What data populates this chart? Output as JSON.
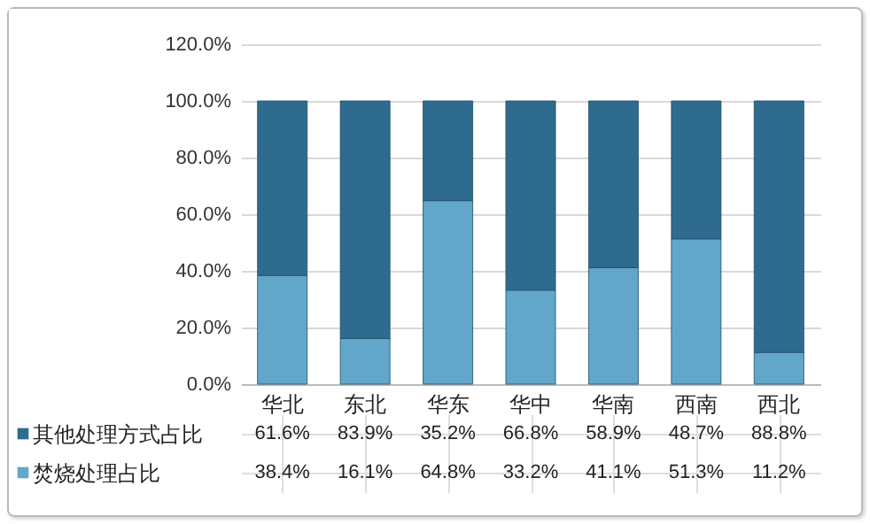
{
  "chart_data": {
    "type": "bar",
    "stacked": true,
    "categories": [
      "华北",
      "东北",
      "华东",
      "华中",
      "华南",
      "西南",
      "西北"
    ],
    "series": [
      {
        "name": "焚烧处理占比",
        "color": "#62a7c9",
        "values": [
          38.4,
          16.1,
          64.8,
          33.2,
          41.1,
          51.3,
          11.2
        ],
        "value_labels": [
          "38.4%",
          "16.1%",
          "64.8%",
          "33.2%",
          "41.1%",
          "51.3%",
          "11.2%"
        ]
      },
      {
        "name": "其他处理方式占比",
        "color": "#2f6b8e",
        "values": [
          61.6,
          83.9,
          35.2,
          66.8,
          58.9,
          48.7,
          88.8
        ],
        "value_labels": [
          "61.6%",
          "83.9%",
          "35.2%",
          "66.8%",
          "58.9%",
          "48.7%",
          "88.8%"
        ]
      }
    ],
    "ylim": [
      0,
      120
    ],
    "yticks": [
      {
        "value": 0,
        "label": "0.0%"
      },
      {
        "value": 20,
        "label": "20.0%"
      },
      {
        "value": 40,
        "label": "40.0%"
      },
      {
        "value": 60,
        "label": "60.0%"
      },
      {
        "value": 80,
        "label": "80.0%"
      },
      {
        "value": 100,
        "label": "100.0%"
      },
      {
        "value": 120,
        "label": "120.0%"
      }
    ],
    "grid": "y",
    "legend": "bottom"
  }
}
